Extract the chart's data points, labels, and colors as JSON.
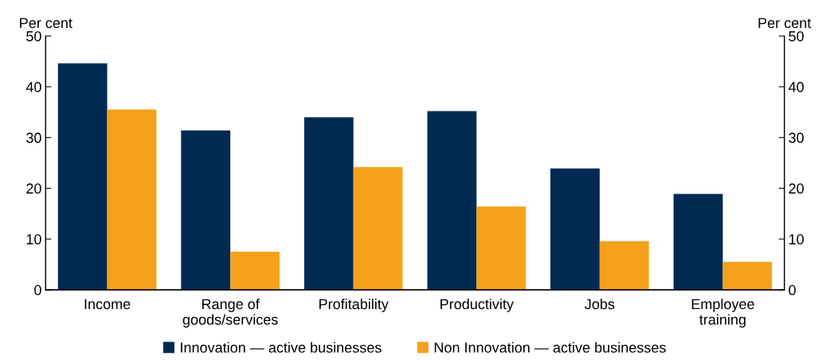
{
  "chart_data": {
    "type": "bar",
    "ylabel": "Per cent",
    "y2label": "Per cent",
    "categories": [
      "Income",
      "Range of\ngoods/services",
      "Profitability",
      "Productivity",
      "Jobs",
      "Employee\ntraining"
    ],
    "series": [
      {
        "name": "Innovation — active businesses",
        "color": "#002a52",
        "values": [
          44.6,
          31.4,
          34.0,
          35.2,
          23.9,
          18.9
        ]
      },
      {
        "name": "Non Innovation — active businesses",
        "color": "#f5a11c",
        "values": [
          35.5,
          7.5,
          24.2,
          16.4,
          9.6,
          5.5
        ]
      }
    ],
    "ylim": [
      0,
      50
    ],
    "yticks": [
      0,
      10,
      20,
      30,
      40,
      50
    ],
    "y2lim": [
      0,
      50
    ],
    "y2ticks": [
      0,
      10,
      20,
      30,
      40,
      50
    ],
    "grid": false,
    "legend": "bottom"
  }
}
